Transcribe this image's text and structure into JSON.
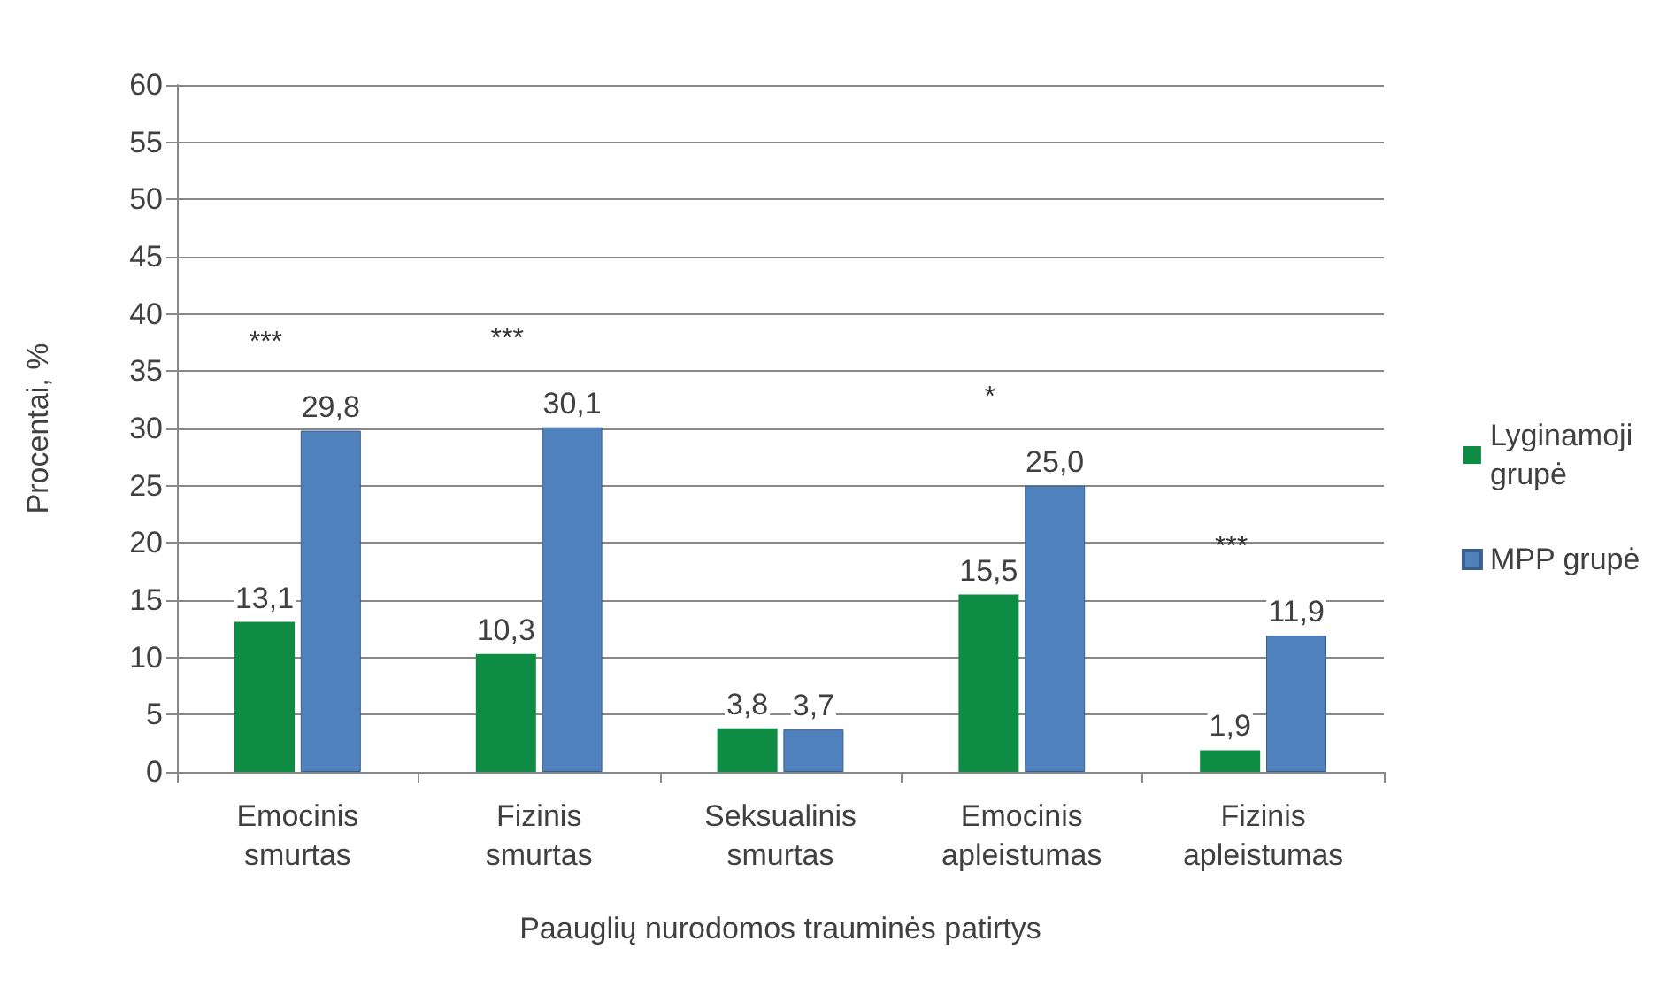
{
  "chart_data": {
    "type": "bar",
    "xlabel": "Paauglių nurodomos trauminės patirtys",
    "ylabel": "Procentai, %",
    "categories": [
      "Emocinis smurtas",
      "Fizinis smurtas",
      "Seksualinis smurtas",
      "Emocinis apleistumas",
      "Fizinis apleistumas"
    ],
    "series": [
      {
        "name": "Lyginamoji grupė",
        "color": "#0e8c44",
        "values": [
          13.1,
          10.3,
          3.8,
          15.5,
          1.9
        ],
        "value_labels": [
          "13,1",
          "10,3",
          "3,8",
          "15,5",
          "1,9"
        ]
      },
      {
        "name": "MPP grupė",
        "color": "#4f81bd",
        "values": [
          29.8,
          30.1,
          3.7,
          25.0,
          11.9
        ],
        "value_labels": [
          "29,8",
          "30,1",
          "3,7",
          "25,0",
          "11,9"
        ]
      }
    ],
    "ylim": [
      0,
      60
    ],
    "yticks": [
      0,
      5,
      10,
      15,
      20,
      25,
      30,
      35,
      40,
      45,
      50,
      55,
      60
    ],
    "grid": "y",
    "legend": "right",
    "annotations": [
      "***",
      "***",
      "*",
      "***"
    ]
  }
}
